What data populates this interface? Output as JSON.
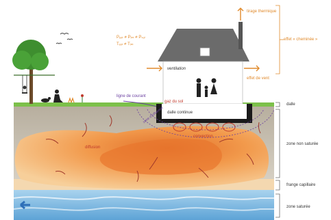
{
  "labels": {
    "tirage_thermique": "tirage thermique",
    "effet_cheminee": "effet « cheminée »",
    "effet_de_vent": "effet de vent",
    "ventilation": "ventilation",
    "pressure_1": "Pₑₓₜ ≠ Pᵢₙₜ ≠ Pₛₒₗ",
    "pressure_2": "Tₑₓₜ ≠ Tᵢₙₜ",
    "ligne_de_courant": "ligne de courant",
    "gaz_du_sol": "gaz du sol",
    "dalle_continue": "dalle continue",
    "convection": "convection",
    "zone_influence": "zone d'influence",
    "diffusion": "diffusion",
    "dalle": "dalle",
    "zone_non_saturee": "zone non saturée",
    "frange_capillaire": "frange capillaire",
    "zone_saturee": "zone saturée"
  },
  "colors": {
    "accent_orange": "#e08a2c",
    "purple": "#6a3fa0",
    "red": "#c0392b",
    "soil": "#c8c0b2",
    "plume": "#f0a050",
    "water": "#8fc4e6",
    "grass": "#7cc04a",
    "roof": "#6b6b6b"
  },
  "icons": [
    "tree-icon",
    "birds-icon",
    "swing-icon",
    "person-sitting-icon",
    "dog-icon",
    "family-icon",
    "flow-arrow-icon"
  ]
}
